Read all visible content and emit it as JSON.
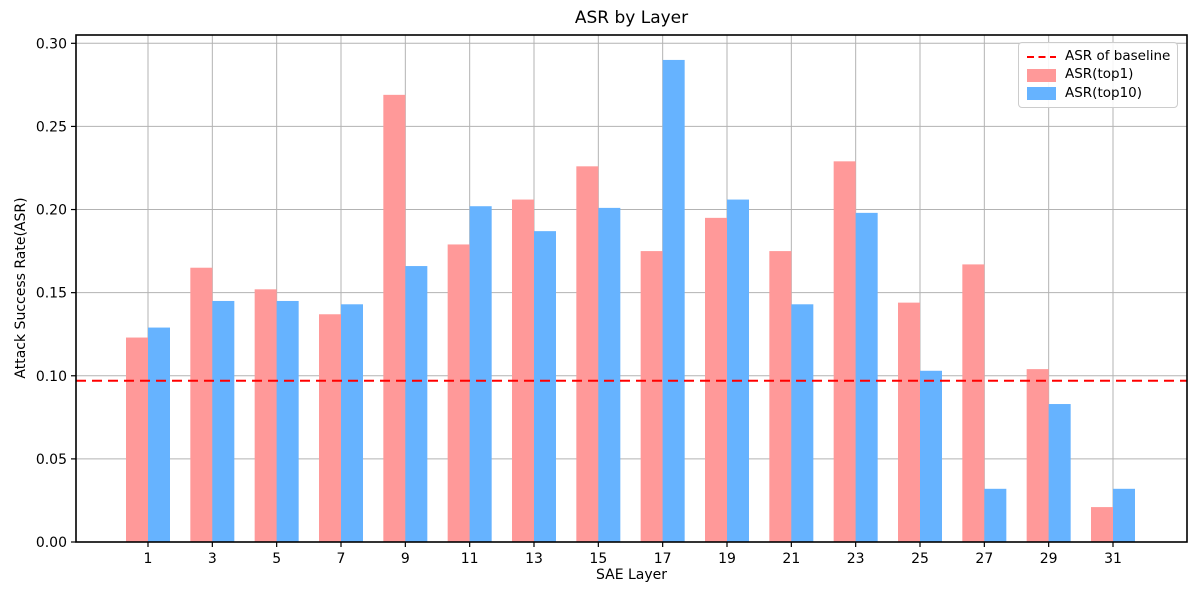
{
  "chart_data": {
    "type": "bar",
    "title": "ASR by Layer",
    "xlabel": "SAE Layer",
    "ylabel": "Attack Success Rate(ASR)",
    "categories": [
      1,
      3,
      5,
      7,
      9,
      11,
      13,
      15,
      17,
      19,
      21,
      23,
      25,
      27,
      29,
      31
    ],
    "series": [
      {
        "name": "ASR(top1)",
        "color": "#ff9999",
        "values": [
          0.123,
          0.165,
          0.152,
          0.137,
          0.269,
          0.179,
          0.206,
          0.226,
          0.175,
          0.195,
          0.175,
          0.229,
          0.144,
          0.167,
          0.104,
          0.021
        ]
      },
      {
        "name": "ASR(top10)",
        "color": "#66b3ff",
        "values": [
          0.129,
          0.145,
          0.145,
          0.143,
          0.166,
          0.202,
          0.187,
          0.201,
          0.29,
          0.206,
          0.143,
          0.198,
          0.103,
          0.032,
          0.083,
          0.032
        ]
      }
    ],
    "baseline": {
      "label": "ASR of baseline",
      "value": 0.097,
      "color": "#ff0000",
      "style": "dashed"
    },
    "ylim": [
      0,
      0.305
    ],
    "yticks": [
      0.0,
      0.05,
      0.1,
      0.15,
      0.2,
      0.25,
      0.3
    ],
    "ytick_labels": [
      "0.00",
      "0.05",
      "0.10",
      "0.15",
      "0.20",
      "0.25",
      "0.30"
    ],
    "grid": true,
    "grid_color": "#b3b3b3",
    "axis_color": "#000000",
    "legend_position": "upper right"
  }
}
